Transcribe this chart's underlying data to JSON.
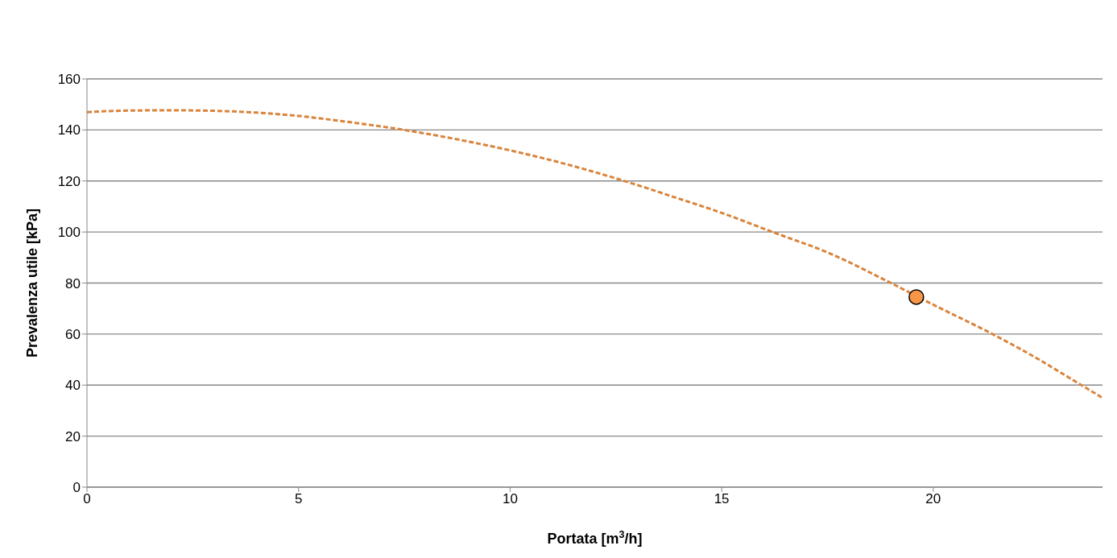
{
  "chart_data": {
    "type": "line",
    "xlabel": "Portata [m$^{3}$/h]",
    "ylabel": "Prevalenza utile [kPa]",
    "xlim": [
      0,
      24
    ],
    "xticks": [
      0,
      5,
      10,
      15,
      20
    ],
    "ylim": [
      0,
      160
    ],
    "yticks": [
      0,
      20,
      40,
      60,
      80,
      100,
      120,
      140,
      160
    ],
    "grid": "y",
    "series": [
      {
        "color": "#d9843b",
        "line_style": "dashed",
        "marker": "none",
        "x": [
          0,
          1,
          2,
          3,
          4,
          5,
          6,
          7.5,
          9,
          10,
          11,
          12.7,
          14,
          15,
          16.2,
          17.5,
          19,
          20,
          21.4,
          22.5,
          23.2,
          24
        ],
        "values": [
          147,
          147.6,
          147.7,
          147.5,
          146.8,
          145.5,
          143.5,
          140,
          135.5,
          132,
          128,
          120,
          113,
          107.5,
          100,
          92,
          80,
          71.5,
          60,
          50,
          43,
          35
        ]
      },
      {
        "type": "scatter",
        "color": "#f79646",
        "marker": "circle",
        "x": [
          19.6
        ],
        "values": [
          74.5
        ]
      }
    ]
  }
}
